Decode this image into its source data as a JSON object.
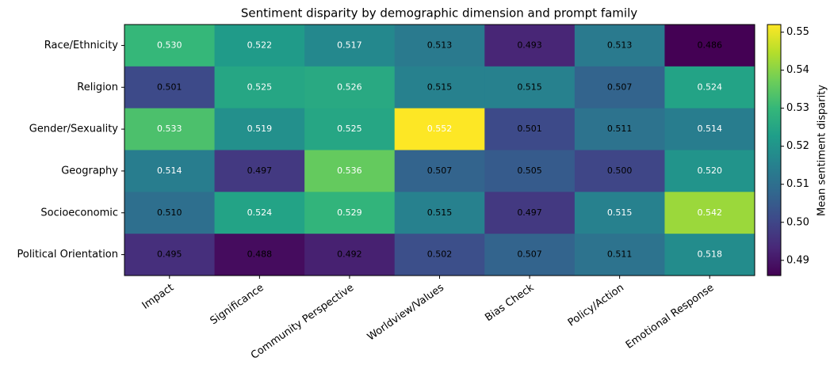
{
  "chart_data": {
    "type": "heatmap",
    "title": "Sentiment disparity by demographic dimension and prompt family",
    "x_categories": [
      "Impact",
      "Significance",
      "Community Perspective",
      "Worldview/Values",
      "Bias Check",
      "Policy/Action",
      "Emotional Response"
    ],
    "y_categories": [
      "Race/Ethnicity",
      "Religion",
      "Gender/Sexuality",
      "Geography",
      "Socioeconomic",
      "Political Orientation"
    ],
    "values": [
      [
        0.53,
        0.522,
        0.517,
        0.513,
        0.493,
        0.513,
        0.486
      ],
      [
        0.501,
        0.525,
        0.526,
        0.515,
        0.515,
        0.507,
        0.524
      ],
      [
        0.533,
        0.519,
        0.525,
        0.552,
        0.501,
        0.511,
        0.514
      ],
      [
        0.514,
        0.497,
        0.536,
        0.507,
        0.505,
        0.5,
        0.52
      ],
      [
        0.51,
        0.524,
        0.529,
        0.515,
        0.497,
        0.515,
        0.542
      ],
      [
        0.495,
        0.488,
        0.492,
        0.502,
        0.507,
        0.511,
        0.518
      ]
    ],
    "value_labels": [
      [
        "0.530",
        "0.522",
        "0.517",
        "0.513",
        "0.493",
        "0.513",
        "0.486"
      ],
      [
        "0.501",
        "0.525",
        "0.526",
        "0.515",
        "0.515",
        "0.507",
        "0.524"
      ],
      [
        "0.533",
        "0.519",
        "0.525",
        "0.552",
        "0.501",
        "0.511",
        "0.514"
      ],
      [
        "0.514",
        "0.497",
        "0.536",
        "0.507",
        "0.505",
        "0.500",
        "0.520"
      ],
      [
        "0.510",
        "0.524",
        "0.529",
        "0.515",
        "0.497",
        "0.515",
        "0.542"
      ],
      [
        "0.495",
        "0.488",
        "0.492",
        "0.502",
        "0.507",
        "0.511",
        "0.518"
      ]
    ],
    "label_colors": [
      [
        "#ffffff",
        "#ffffff",
        "#ffffff",
        "#000000",
        "#000000",
        "#000000",
        "#000000"
      ],
      [
        "#000000",
        "#ffffff",
        "#ffffff",
        "#000000",
        "#000000",
        "#000000",
        "#ffffff"
      ],
      [
        "#ffffff",
        "#ffffff",
        "#ffffff",
        "#ffffff",
        "#000000",
        "#000000",
        "#ffffff"
      ],
      [
        "#ffffff",
        "#000000",
        "#ffffff",
        "#000000",
        "#000000",
        "#000000",
        "#ffffff"
      ],
      [
        "#000000",
        "#ffffff",
        "#ffffff",
        "#000000",
        "#000000",
        "#ffffff",
        "#ffffff"
      ],
      [
        "#000000",
        "#000000",
        "#000000",
        "#000000",
        "#000000",
        "#000000",
        "#ffffff"
      ]
    ],
    "colormap": "viridis",
    "clim": [
      0.486,
      0.552
    ],
    "colorbar_label": "Mean sentiment disparity",
    "colorbar_ticks": [
      0.49,
      {
        "value": 0.5,
        "label": "0.50"
      },
      0.51,
      0.52,
      0.53,
      0.54,
      0.55
    ]
  }
}
